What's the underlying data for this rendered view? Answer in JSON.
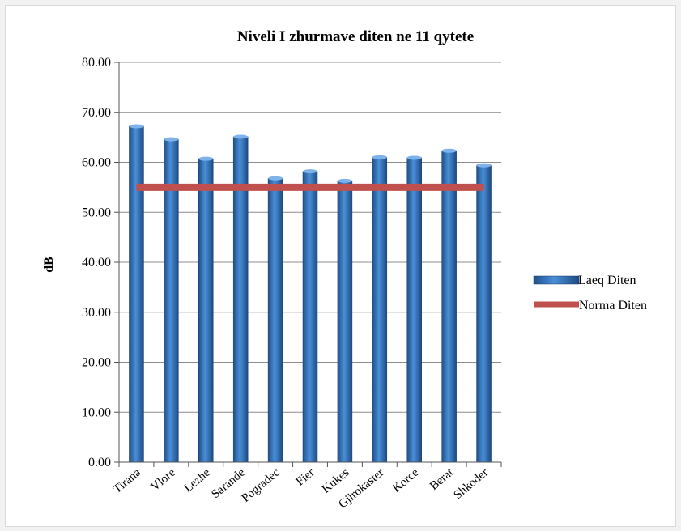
{
  "chart_data": {
    "type": "bar",
    "title": "Niveli I zhurmave diten ne 11 qytete",
    "xlabel": "",
    "ylabel": "dB",
    "ylim": [
      0,
      80
    ],
    "yticks": [
      "0.00",
      "10.00",
      "20.00",
      "30.00",
      "40.00",
      "50.00",
      "60.00",
      "70.00",
      "80.00"
    ],
    "ytick_values": [
      0,
      10,
      20,
      30,
      40,
      50,
      60,
      70,
      80
    ],
    "categories": [
      "Tirana",
      "Vlore",
      "Lezhe",
      "Sarande",
      "Pogradec",
      "Fier",
      "Kukes",
      "Gjirokaster",
      "Korce",
      "Berat",
      "Shkoder"
    ],
    "series": [
      {
        "name": "Laeq Diten",
        "kind": "bar",
        "color": "#2e6fb5",
        "values": [
          67.2,
          64.6,
          60.7,
          65.1,
          56.8,
          58.2,
          56.3,
          61.0,
          60.9,
          62.3,
          59.4
        ]
      },
      {
        "name": "Norma Diten",
        "kind": "line",
        "color": "#c0504d",
        "values": [
          55,
          55,
          55,
          55,
          55,
          55,
          55,
          55,
          55,
          55,
          55
        ]
      }
    ],
    "grid": true,
    "legend": "right"
  }
}
